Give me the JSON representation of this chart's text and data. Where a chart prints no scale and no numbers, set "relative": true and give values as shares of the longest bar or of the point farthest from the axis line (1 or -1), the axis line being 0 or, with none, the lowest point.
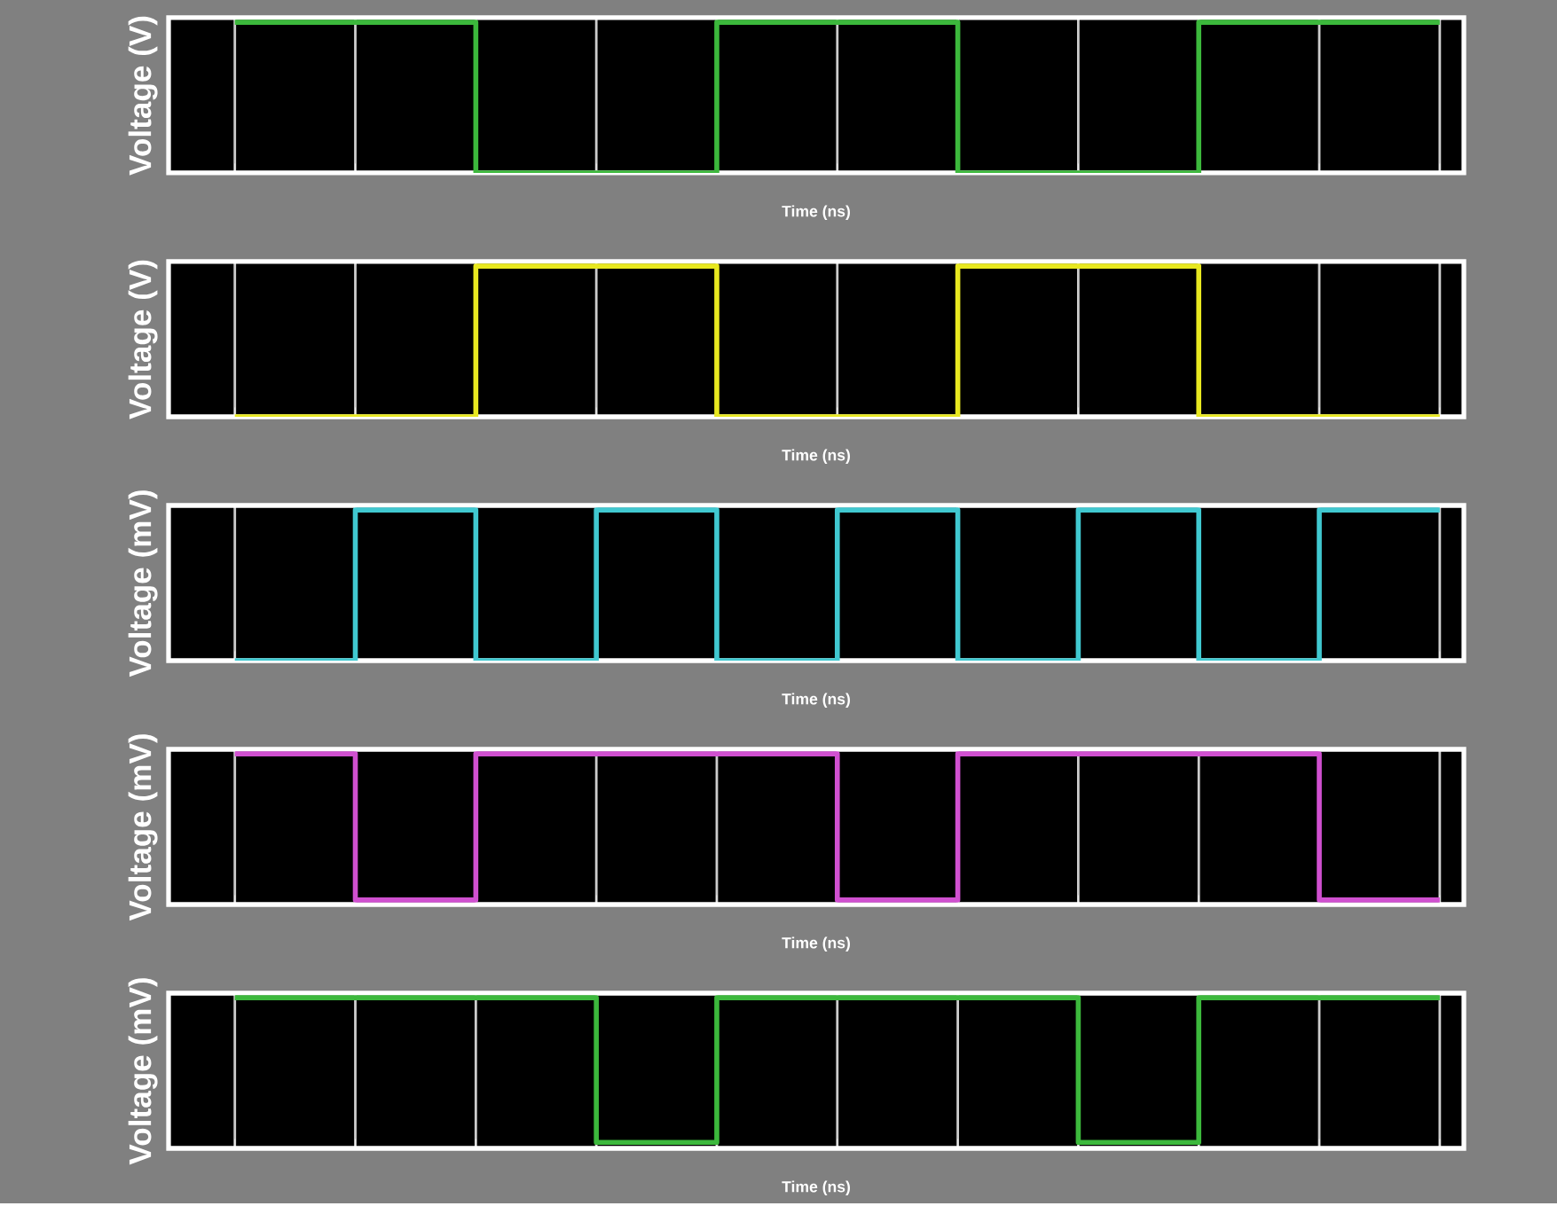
{
  "chart_data": [
    {
      "type": "step",
      "relative": true,
      "ylabel": "Voltage (V)",
      "xlabel": "Time (ns)",
      "grid": "x",
      "categories": [
        null,
        null,
        null,
        null,
        null,
        null,
        null,
        null,
        null,
        null,
        null
      ],
      "color": "#3cb83c",
      "values": [
        1,
        1,
        0,
        0,
        1,
        1,
        0,
        0,
        1,
        1,
        1
      ]
    },
    {
      "type": "step",
      "relative": true,
      "ylabel": "Voltage (V)",
      "xlabel": "Time (ns)",
      "grid": "x",
      "categories": [
        null,
        null,
        null,
        null,
        null,
        null,
        null,
        null,
        null,
        null,
        null
      ],
      "color": "#e8e820",
      "values": [
        0,
        0,
        1,
        1,
        0,
        0,
        1,
        1,
        0,
        0,
        0
      ]
    },
    {
      "type": "step",
      "relative": true,
      "ylabel": "Voltage (mV)",
      "xlabel": "Time (ns)",
      "grid": "x",
      "categories": [
        null,
        null,
        null,
        null,
        null,
        null,
        null,
        null,
        null,
        null,
        null
      ],
      "color": "#40c8d0",
      "values": [
        0,
        1,
        0,
        1,
        0,
        1,
        0,
        1,
        0,
        1,
        1
      ]
    },
    {
      "type": "step",
      "relative": true,
      "ylabel": "Voltage (mV)",
      "xlabel": "Time (ns)",
      "grid": "x",
      "categories": [
        null,
        null,
        null,
        null,
        null,
        null,
        null,
        null,
        null,
        null,
        null
      ],
      "color": "#d050d0",
      "values": [
        1,
        0.03,
        1,
        1,
        1,
        0.03,
        1,
        1,
        1,
        0.03,
        0.03
      ]
    },
    {
      "type": "step",
      "relative": true,
      "ylabel": "Voltage (mV)",
      "xlabel": "Time (ns)",
      "grid": "x",
      "categories": [
        null,
        null,
        null,
        null,
        null,
        null,
        null,
        null,
        null,
        null,
        null
      ],
      "color": "#3cb83c",
      "values": [
        1,
        1,
        1,
        0.04,
        1,
        1,
        1,
        0.04,
        1,
        1,
        1
      ]
    }
  ]
}
